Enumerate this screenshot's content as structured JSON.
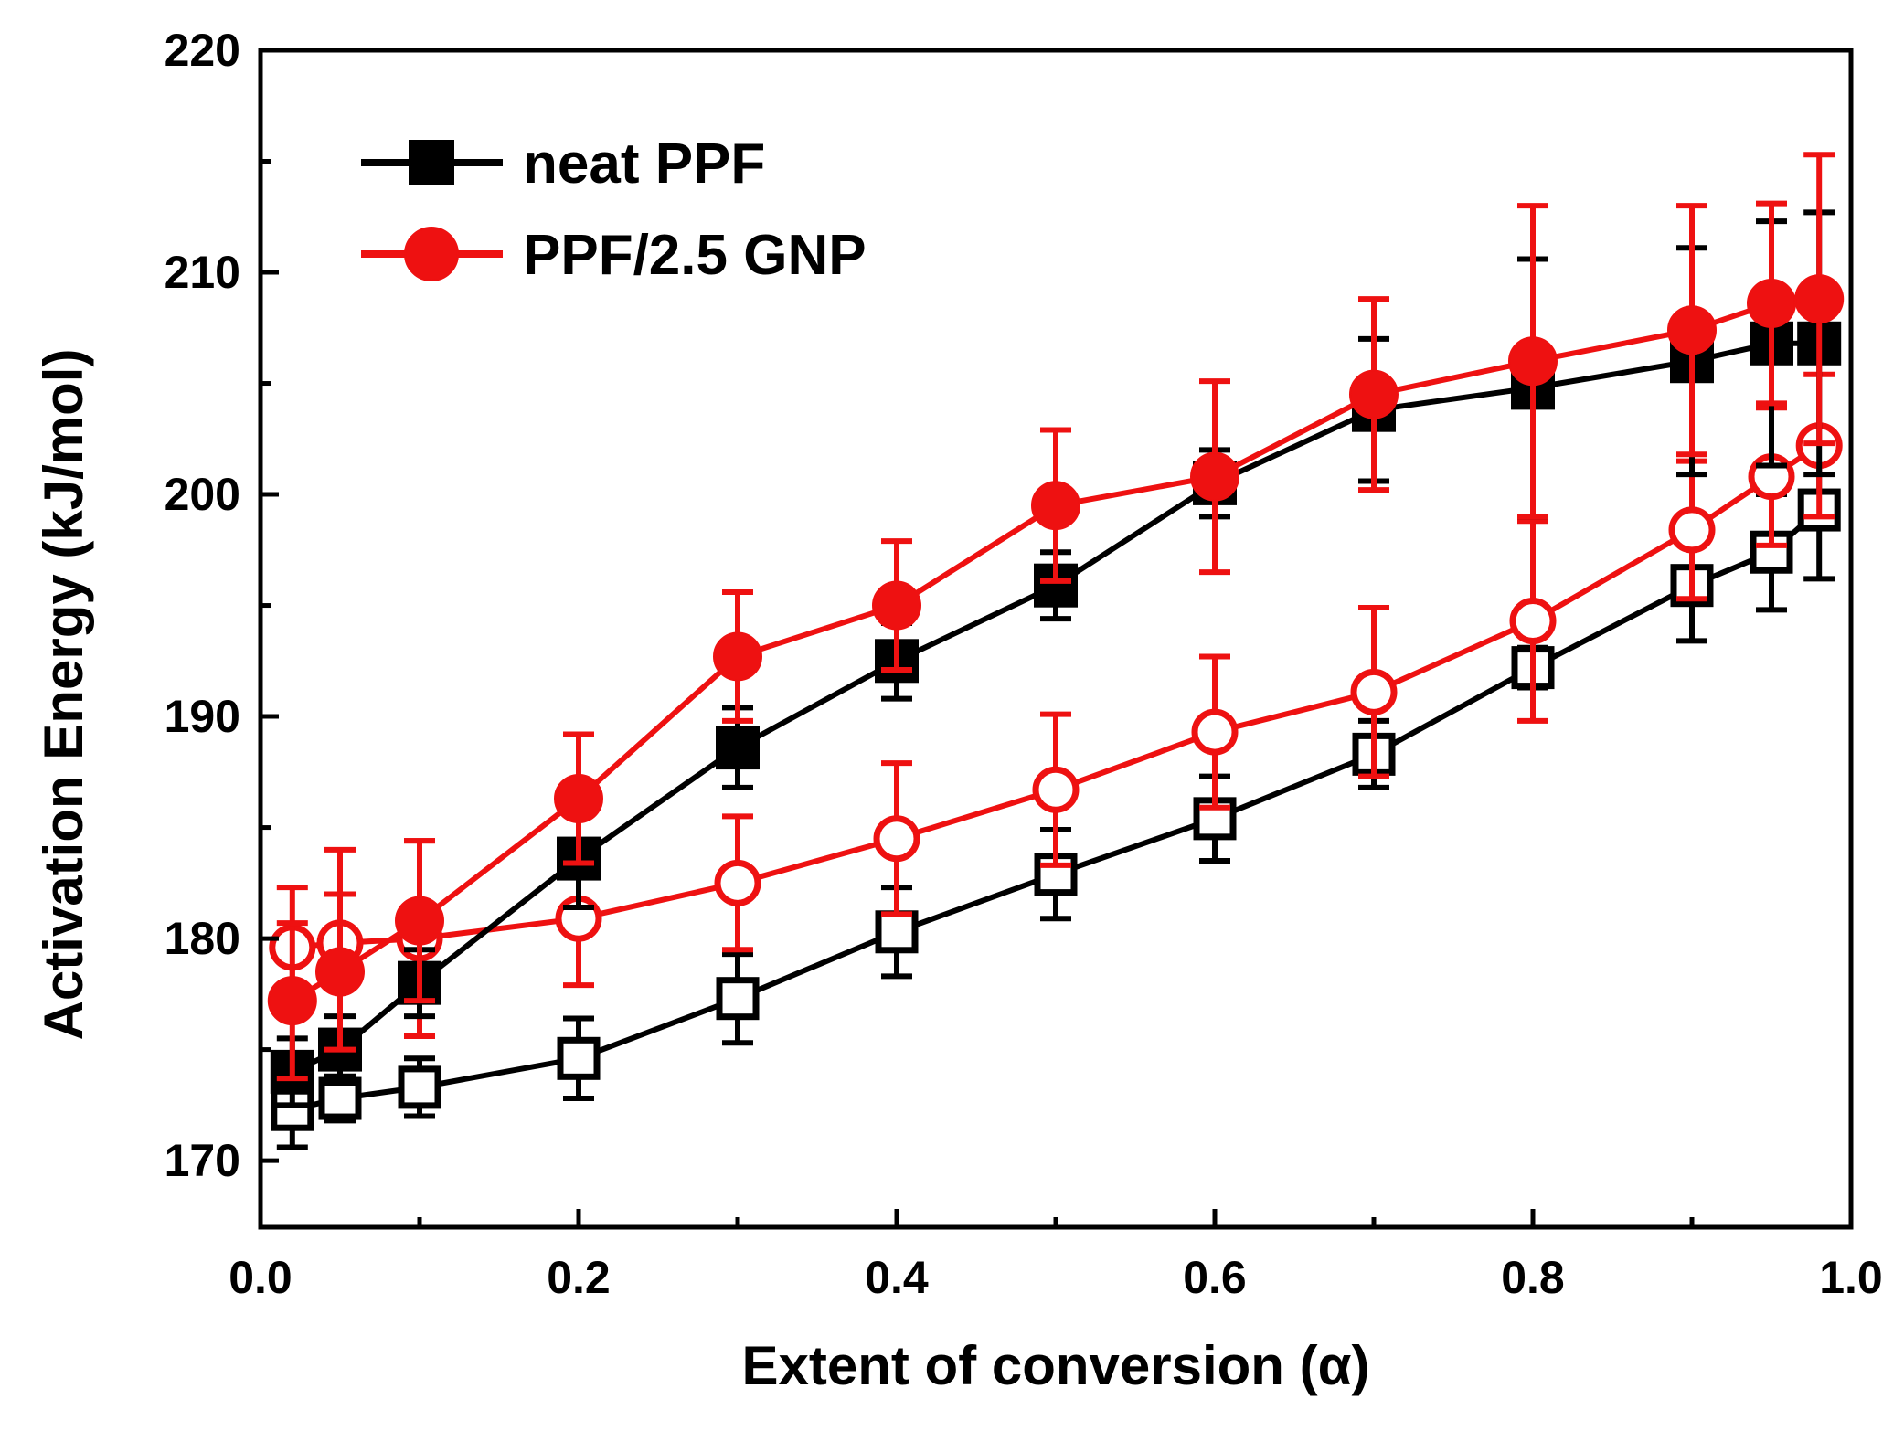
{
  "chart_data": {
    "type": "line",
    "title": "",
    "xlabel": "Extent of conversion (α)",
    "ylabel": "Activation Energy (kJ/mol)",
    "xlim": [
      0.0,
      1.0
    ],
    "ylim": [
      167,
      220
    ],
    "xticks": [
      0.0,
      0.2,
      0.4,
      0.6,
      0.8,
      1.0
    ],
    "xtick_labels": [
      "0.0",
      "0.2",
      "0.4",
      "0.6",
      "0.8",
      "1.0"
    ],
    "xminor": [
      0.1,
      0.3,
      0.5,
      0.7,
      0.9
    ],
    "yticks": [
      170,
      180,
      190,
      200,
      210,
      220
    ],
    "ytick_labels": [
      "170",
      "180",
      "190",
      "200",
      "210",
      "220"
    ],
    "yminor": [
      175,
      185,
      195,
      205,
      215
    ],
    "legend_position": "top-left",
    "x": [
      0.02,
      0.05,
      0.1,
      0.2,
      0.3,
      0.4,
      0.5,
      0.6,
      0.7,
      0.8,
      0.9,
      0.95,
      0.98
    ],
    "series": [
      {
        "name": "neat PPF",
        "in_legend": true,
        "color": "#000000",
        "marker": "square",
        "filled": true,
        "values": [
          174.0,
          175.0,
          178.0,
          183.6,
          188.6,
          192.5,
          195.9,
          200.5,
          203.8,
          204.8,
          206.0,
          206.8,
          206.8
        ],
        "errors": [
          1.5,
          1.5,
          1.5,
          2.2,
          1.8,
          1.7,
          1.5,
          1.5,
          3.2,
          5.8,
          5.1,
          5.5,
          5.9
        ]
      },
      {
        "name": "PPF/2.5 GNP",
        "in_legend": true,
        "color": "#ee1111",
        "marker": "circle",
        "filled": true,
        "values": [
          177.2,
          178.5,
          180.8,
          186.3,
          192.7,
          195.0,
          199.5,
          200.8,
          204.5,
          206.0,
          207.4,
          208.6,
          208.8
        ],
        "errors": [
          3.5,
          3.5,
          3.6,
          2.9,
          2.9,
          2.9,
          3.4,
          4.3,
          4.3,
          7.0,
          5.6,
          4.5,
          6.5
        ]
      },
      {
        "name": "neat PPF (open)",
        "in_legend": false,
        "color": "#000000",
        "marker": "square",
        "filled": false,
        "values": [
          172.3,
          172.8,
          173.3,
          174.6,
          177.3,
          180.3,
          182.9,
          185.4,
          188.3,
          192.2,
          195.9,
          197.4,
          199.3
        ],
        "errors": [
          1.7,
          1.0,
          1.3,
          1.8,
          2.0,
          2.0,
          2.0,
          1.9,
          1.5,
          0.9,
          2.5,
          2.6,
          3.1
        ]
      },
      {
        "name": "PPF/2.5 GNP (open)",
        "in_legend": false,
        "color": "#ee1111",
        "marker": "circle",
        "filled": false,
        "values": [
          179.6,
          179.8,
          180.0,
          180.9,
          182.5,
          184.5,
          186.7,
          189.3,
          191.1,
          194.3,
          198.4,
          200.8,
          202.2
        ],
        "errors": [
          2.7,
          4.2,
          4.4,
          3.0,
          3.0,
          3.4,
          3.4,
          3.4,
          3.8,
          4.5,
          3.1,
          3.1,
          3.2
        ]
      }
    ]
  }
}
